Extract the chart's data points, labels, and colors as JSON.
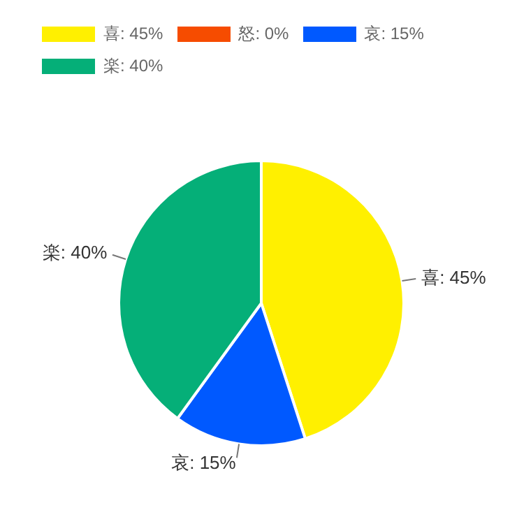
{
  "chart_data": {
    "type": "pie",
    "categories": [
      "喜: 45%",
      "怒: 0%",
      "哀: 15%",
      "楽: 40%"
    ],
    "values": [
      45,
      0,
      15,
      40
    ],
    "colors": [
      "#fff000",
      "#f64c00",
      "#0059ff",
      "#05af78"
    ],
    "legend": "top"
  }
}
